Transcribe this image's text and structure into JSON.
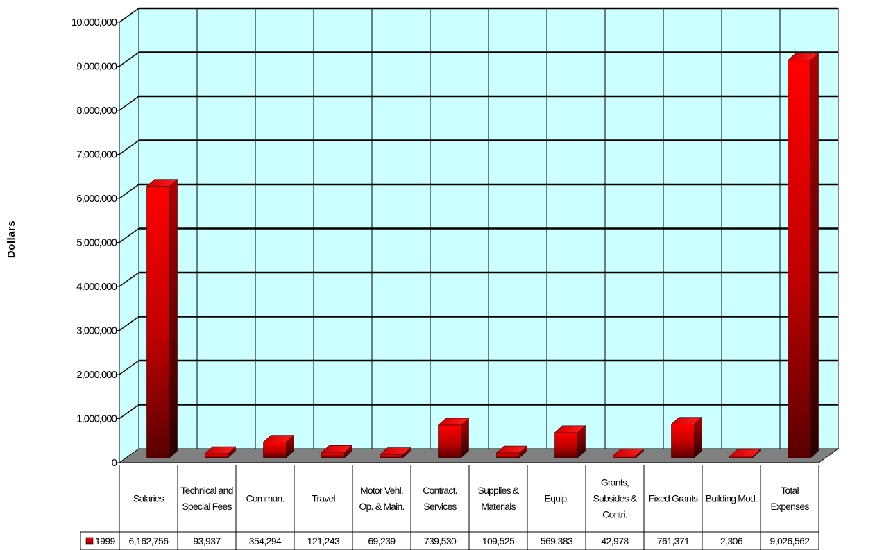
{
  "chart_data": {
    "type": "bar",
    "categories": [
      "Salaries",
      "Technical and Special Fees",
      "Commun.",
      "Travel",
      "Motor Vehl. Op. & Main.",
      "Contract. Services",
      "Supplies & Materials",
      "Equip.",
      "Grants, Subsides & Contri.",
      "Fixed Grants",
      "Building Mod.",
      "Total Expenses"
    ],
    "series": [
      {
        "name": "1999",
        "values": [
          6162756,
          93937,
          354294,
          121243,
          69239,
          739530,
          109525,
          569383,
          42978,
          761371,
          2306,
          9026562
        ],
        "labels": [
          "6,162,756",
          "93,937",
          "354,294",
          "121,243",
          "69,239",
          "739,530",
          "109,525",
          "569,383",
          "42,978",
          "761,371",
          "2,306",
          "9,026,562"
        ]
      }
    ],
    "ylabel": "Dollars",
    "ylim": [
      0,
      10000000
    ],
    "yticks": [
      "0",
      "1,000,000",
      "2,000,000",
      "3,000,000",
      "4,000,000",
      "5,000,000",
      "6,000,000",
      "7,000,000",
      "8,000,000",
      "9,000,000",
      "10,000,000"
    ],
    "grid": true,
    "legend": "data-table-left",
    "colors": {
      "bar_front": "#ff0000",
      "bar_dark": "#5a0000",
      "plot_bg": "#ccffff",
      "floor": "#808080"
    }
  }
}
